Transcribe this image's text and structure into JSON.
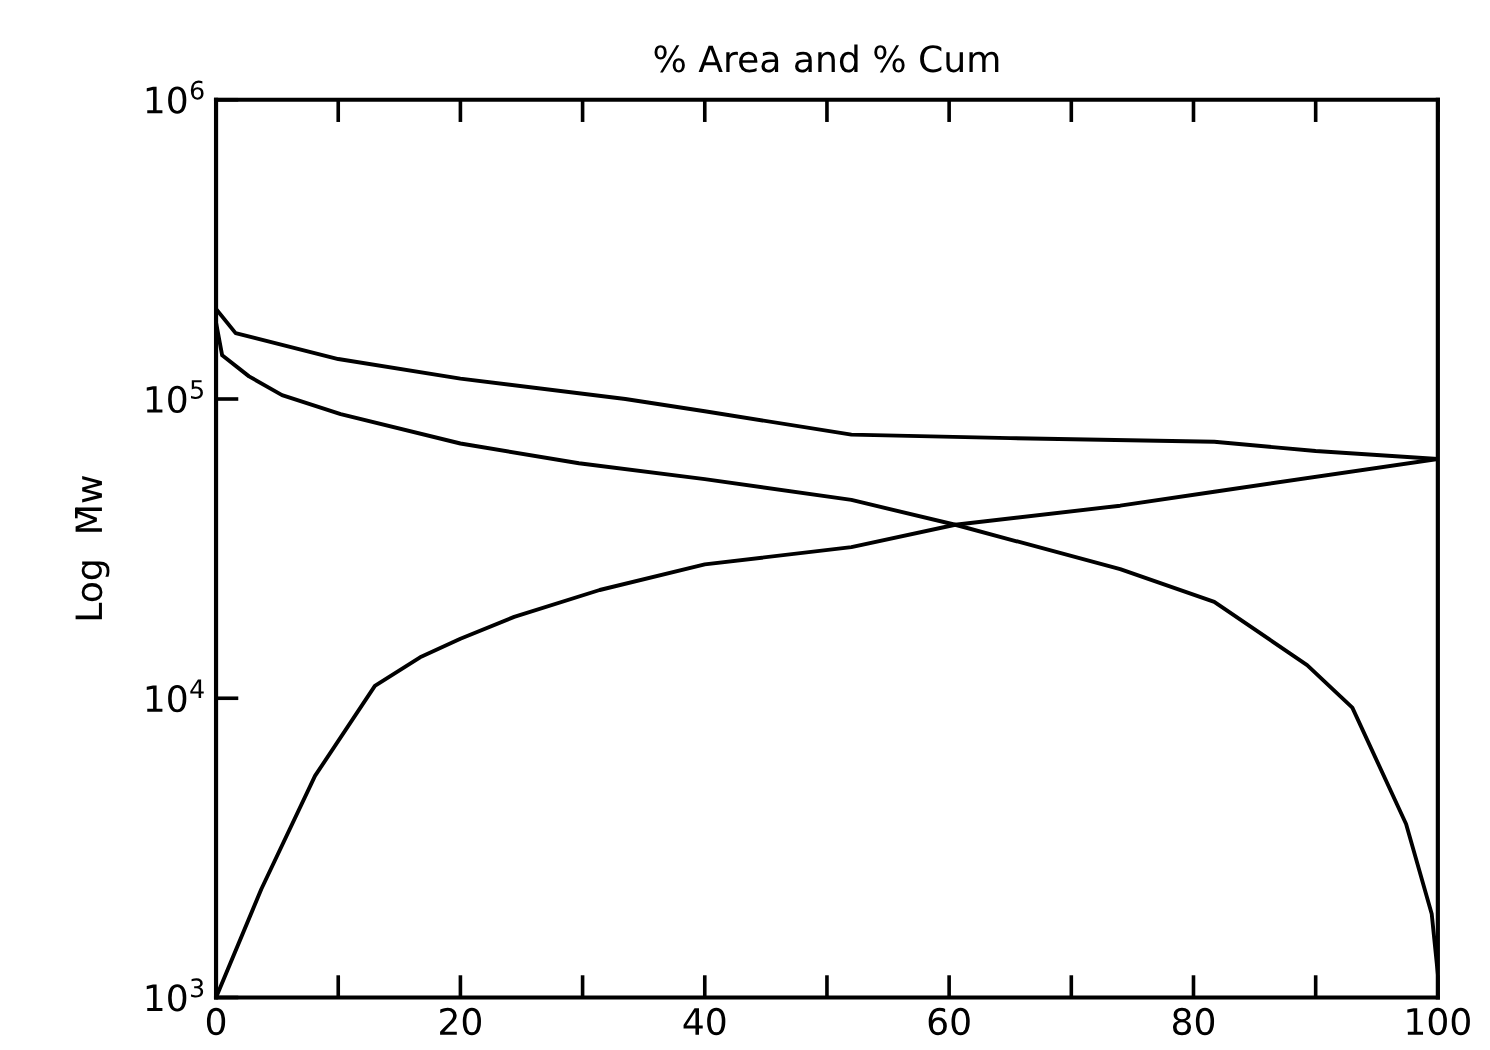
{
  "chart_data": {
    "type": "line",
    "title": "% Area and % Cum",
    "ylabel": "Log  M̄w",
    "log": "y",
    "xlim": [
      0,
      100
    ],
    "ylim": [
      1000,
      1000000
    ],
    "xticks": [
      0,
      {
        "value": 10,
        "label": null
      },
      20,
      {
        "value": 30,
        "label": null
      },
      40,
      {
        "value": 50,
        "label": null
      },
      60,
      {
        "value": 70,
        "label": null
      },
      80,
      {
        "value": 90,
        "label": null
      },
      100
    ],
    "yticks": [
      {
        "value": 1000,
        "label": "10$^{3}$"
      },
      {
        "value": 10000,
        "label": "10$^{4}$"
      },
      {
        "value": 100000,
        "label": "10$^{5}$"
      },
      {
        "value": 1000000,
        "label": "10$^{6}$"
      }
    ],
    "grid": false,
    "legend": false,
    "marker": "none",
    "line_style": "solid",
    "series": [
      {
        "color": "#000000",
        "x": [
          0,
          1.6,
          10,
          20,
          33.5,
          40,
          52,
          65,
          81.7,
          90,
          100
        ],
        "values": [
          200000,
          166000,
          136000,
          117000,
          100000,
          91000,
          76000,
          74000,
          72000,
          67000,
          63000
        ]
      },
      {
        "color": "#000000",
        "x": [
          0,
          0.5,
          2.7,
          5.4,
          10.2,
          20,
          29.7,
          40,
          52,
          60.5,
          74,
          81.7,
          89.3,
          93,
          97.4,
          99.5,
          100
        ],
        "values": [
          180000,
          140000,
          119000,
          103000,
          89000,
          71000,
          61000,
          54000,
          46000,
          38000,
          27000,
          21000,
          12900,
          9300,
          3800,
          1900,
          1200
        ]
      },
      {
        "color": "#000000",
        "x": [
          0,
          3.7,
          8.1,
          13,
          16.7,
          20,
          24.4,
          31.4,
          40,
          52,
          60.5,
          74,
          81.7,
          100
        ],
        "values": [
          1000,
          2300,
          5500,
          11000,
          13700,
          15800,
          18700,
          23000,
          28000,
          32000,
          38000,
          44000,
          49000,
          63000
        ]
      }
    ]
  }
}
